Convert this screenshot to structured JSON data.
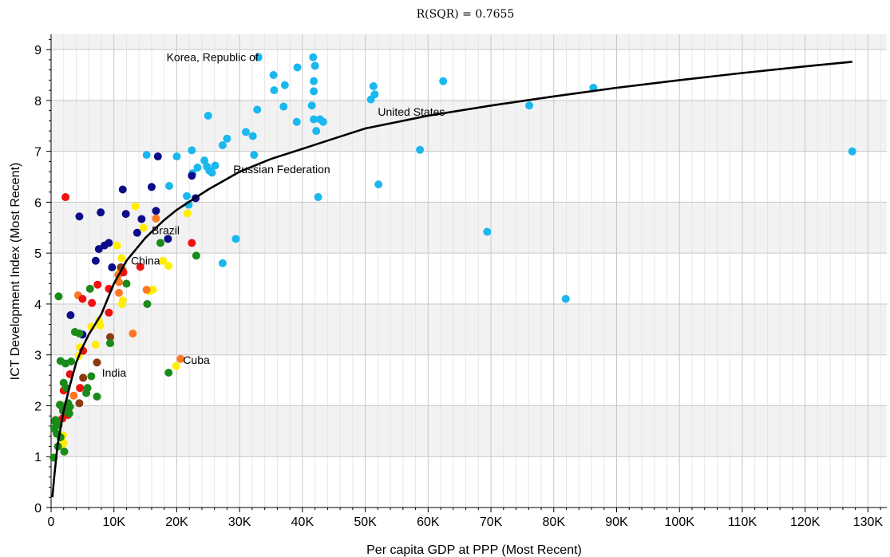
{
  "chart_data": {
    "type": "scatter",
    "title": "R(SQR) = 0.7655",
    "xlabel": "Per capita GDP at PPP (Most Recent)",
    "ylabel": "ICT Development Index (Most Recent)",
    "xlim": [
      0,
      133000
    ],
    "ylim": [
      0,
      9.3
    ],
    "x_ticks": [
      0,
      10000,
      20000,
      30000,
      40000,
      50000,
      60000,
      70000,
      80000,
      90000,
      100000,
      110000,
      120000,
      130000
    ],
    "x_tick_labels": [
      "0",
      "10K",
      "20K",
      "30K",
      "40K",
      "50K",
      "60K",
      "70K",
      "80K",
      "90K",
      "100K",
      "110K",
      "120K",
      "130K"
    ],
    "y_ticks": [
      0,
      1,
      2,
      3,
      4,
      5,
      6,
      7,
      8,
      9
    ],
    "y_tick_labels": [
      "0",
      "1",
      "2",
      "3",
      "4",
      "5",
      "6",
      "7",
      "8",
      "9"
    ],
    "grid": true,
    "colors": {
      "light_blue": "#1ab8ee",
      "dark_blue": "#0c0c8a",
      "yellow": "#ffee00",
      "orange": "#ff7722",
      "red": "#ee1111",
      "brown": "#8b3a10",
      "green": "#1a8a1a",
      "fit_line": "#000000",
      "band": "#f2f2f2"
    },
    "fit_curve": {
      "x": [
        200,
        500,
        1000,
        2000,
        3000,
        4000,
        5000,
        6000,
        7000,
        8000,
        10000,
        12000,
        15000,
        18000,
        20000,
        25000,
        30000,
        35000,
        40000,
        45000,
        50000,
        60000,
        70000,
        80000,
        90000,
        100000,
        110000,
        120000,
        127500
      ],
      "y": [
        0.2,
        0.6,
        1.2,
        1.9,
        2.4,
        2.85,
        3.15,
        3.4,
        3.6,
        3.8,
        4.4,
        4.85,
        5.3,
        5.65,
        5.85,
        6.25,
        6.6,
        6.85,
        7.05,
        7.25,
        7.45,
        7.7,
        7.9,
        8.08,
        8.25,
        8.4,
        8.54,
        8.67,
        8.76
      ]
    },
    "annotations": [
      {
        "text": "Korea, Republic of",
        "x": 33000,
        "y": 8.85
      },
      {
        "text": "United States",
        "x": 52000,
        "y": 7.78
      },
      {
        "text": "Russian Federation",
        "x": 29000,
        "y": 6.65
      },
      {
        "text": "Brazil",
        "x": 16000,
        "y": 5.45
      },
      {
        "text": "China",
        "x": 12700,
        "y": 4.85
      },
      {
        "text": "India",
        "x": 8100,
        "y": 2.65
      },
      {
        "text": "Cuba",
        "x": 21000,
        "y": 2.9
      }
    ],
    "series": [
      {
        "color": "light_blue",
        "points": [
          [
            33000,
            8.85
          ],
          [
            35400,
            8.5
          ],
          [
            37200,
            8.3
          ],
          [
            39200,
            8.65
          ],
          [
            41700,
            8.85
          ],
          [
            42000,
            8.68
          ],
          [
            41800,
            8.38
          ],
          [
            41800,
            8.18
          ],
          [
            35500,
            8.2
          ],
          [
            41500,
            7.9
          ],
          [
            37000,
            7.88
          ],
          [
            32800,
            7.82
          ],
          [
            41800,
            7.63
          ],
          [
            42800,
            7.63
          ],
          [
            43300,
            7.58
          ],
          [
            39100,
            7.58
          ],
          [
            42200,
            7.4
          ],
          [
            25000,
            7.7
          ],
          [
            51300,
            8.28
          ],
          [
            51500,
            8.12
          ],
          [
            50900,
            8.02
          ],
          [
            62400,
            8.38
          ],
          [
            86300,
            8.25
          ],
          [
            76100,
            7.9
          ],
          [
            31000,
            7.38
          ],
          [
            32100,
            7.3
          ],
          [
            28000,
            7.25
          ],
          [
            27300,
            7.12
          ],
          [
            22400,
            7.02
          ],
          [
            20000,
            6.9
          ],
          [
            15200,
            6.93
          ],
          [
            32300,
            6.93
          ],
          [
            24400,
            6.82
          ],
          [
            24800,
            6.7
          ],
          [
            23300,
            6.68
          ],
          [
            26100,
            6.72
          ],
          [
            25200,
            6.62
          ],
          [
            25600,
            6.58
          ],
          [
            22500,
            6.57
          ],
          [
            18800,
            6.32
          ],
          [
            21600,
            6.12
          ],
          [
            42500,
            6.1
          ],
          [
            52100,
            6.35
          ],
          [
            21900,
            5.95
          ],
          [
            58700,
            7.03
          ],
          [
            127500,
            7.0
          ],
          [
            69400,
            5.42
          ],
          [
            29400,
            5.28
          ],
          [
            27300,
            4.8
          ],
          [
            81900,
            4.1
          ]
        ]
      },
      {
        "color": "dark_blue",
        "points": [
          [
            17000,
            6.9
          ],
          [
            11400,
            6.25
          ],
          [
            16000,
            6.3
          ],
          [
            22400,
            6.52
          ],
          [
            23000,
            6.08
          ],
          [
            4500,
            5.72
          ],
          [
            7900,
            5.8
          ],
          [
            11900,
            5.77
          ],
          [
            14400,
            5.67
          ],
          [
            16700,
            5.83
          ],
          [
            8500,
            5.15
          ],
          [
            9200,
            5.2
          ],
          [
            7600,
            5.08
          ],
          [
            13700,
            5.4
          ],
          [
            18600,
            5.28
          ],
          [
            7100,
            4.85
          ],
          [
            9700,
            4.72
          ],
          [
            3100,
            3.78
          ],
          [
            5000,
            3.4
          ]
        ]
      },
      {
        "color": "yellow",
        "points": [
          [
            13400,
            5.92
          ],
          [
            21700,
            5.78
          ],
          [
            14700,
            5.5
          ],
          [
            10500,
            5.15
          ],
          [
            11200,
            4.9
          ],
          [
            17800,
            4.85
          ],
          [
            18700,
            4.75
          ],
          [
            10900,
            4.62
          ],
          [
            16200,
            4.28
          ],
          [
            15600,
            4.25
          ],
          [
            11400,
            4.07
          ],
          [
            11300,
            4.0
          ],
          [
            7600,
            3.67
          ],
          [
            7800,
            3.58
          ],
          [
            6400,
            3.55
          ],
          [
            7100,
            3.2
          ],
          [
            4600,
            3.15
          ],
          [
            4400,
            2.98
          ],
          [
            19900,
            2.78
          ],
          [
            1900,
            1.42
          ],
          [
            2000,
            1.27
          ],
          [
            1700,
            1.22
          ]
        ]
      },
      {
        "color": "orange",
        "points": [
          [
            16700,
            5.68
          ],
          [
            11400,
            4.67
          ],
          [
            10700,
            4.57
          ],
          [
            10800,
            4.43
          ],
          [
            15200,
            4.28
          ],
          [
            10800,
            4.22
          ],
          [
            4300,
            4.17
          ],
          [
            13000,
            3.42
          ],
          [
            20600,
            2.92
          ],
          [
            3600,
            2.2
          ],
          [
            1500,
            2.02
          ]
        ]
      },
      {
        "color": "red",
        "points": [
          [
            2300,
            6.1
          ],
          [
            22400,
            5.2
          ],
          [
            14200,
            4.73
          ],
          [
            11500,
            4.62
          ],
          [
            7400,
            4.38
          ],
          [
            9200,
            4.3
          ],
          [
            5000,
            4.1
          ],
          [
            6500,
            4.02
          ],
          [
            9200,
            3.83
          ],
          [
            5100,
            3.08
          ],
          [
            3000,
            2.62
          ],
          [
            4600,
            2.35
          ],
          [
            2000,
            2.3
          ],
          [
            2700,
            1.82
          ],
          [
            1800,
            1.75
          ]
        ]
      },
      {
        "color": "brown",
        "points": [
          [
            11100,
            4.72
          ],
          [
            9400,
            3.35
          ],
          [
            7300,
            2.85
          ],
          [
            5100,
            2.55
          ],
          [
            4500,
            2.05
          ],
          [
            1900,
            1.95
          ],
          [
            2300,
            1.88
          ]
        ]
      },
      {
        "color": "green",
        "points": [
          [
            17400,
            5.2
          ],
          [
            23100,
            4.95
          ],
          [
            12000,
            4.4
          ],
          [
            6200,
            4.3
          ],
          [
            15300,
            4.0
          ],
          [
            1200,
            4.15
          ],
          [
            3800,
            3.45
          ],
          [
            4500,
            3.42
          ],
          [
            9400,
            3.23
          ],
          [
            1500,
            2.88
          ],
          [
            2300,
            2.83
          ],
          [
            3200,
            2.87
          ],
          [
            18700,
            2.65
          ],
          [
            6400,
            2.58
          ],
          [
            2000,
            2.45
          ],
          [
            5800,
            2.35
          ],
          [
            5600,
            2.25
          ],
          [
            7300,
            2.18
          ],
          [
            2400,
            2.35
          ],
          [
            2700,
            2.05
          ],
          [
            1400,
            2.02
          ],
          [
            3000,
            1.98
          ],
          [
            1900,
            1.9
          ],
          [
            2900,
            1.85
          ],
          [
            700,
            1.68
          ],
          [
            1200,
            1.62
          ],
          [
            500,
            1.55
          ],
          [
            900,
            1.45
          ],
          [
            1500,
            1.38
          ],
          [
            2100,
            1.1
          ],
          [
            400,
            0.98
          ],
          [
            1100,
            1.2
          ],
          [
            700,
            1.72
          ]
        ]
      }
    ]
  }
}
